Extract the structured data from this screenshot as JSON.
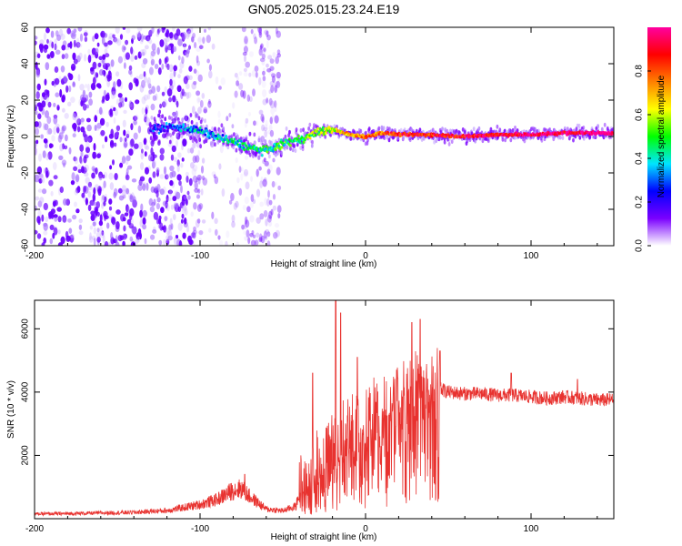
{
  "title": "GN05.2025.015.23.24.E19",
  "chart_data": [
    {
      "type": "heatmap",
      "xlabel": "Height of straight line (km)",
      "ylabel": "Frequency (Hz)",
      "xlim": [
        -200,
        150
      ],
      "ylim": [
        -60,
        60
      ],
      "xticks": [
        -200,
        -100,
        0,
        100
      ],
      "yticks": [
        -60,
        -40,
        -20,
        0,
        20,
        40,
        60
      ],
      "xtick_labels": [
        "-200",
        "-100",
        "0",
        "100"
      ],
      "ytick_labels": [
        "-60",
        "-40",
        "-20",
        "0",
        "20",
        "40",
        "60"
      ],
      "colorbar": {
        "label": "Normalized spectral amplitude",
        "range": [
          0,
          1
        ],
        "ticks": [
          0.0,
          0.2,
          0.4,
          0.6,
          0.8
        ],
        "tick_labels": [
          "0.0",
          "0.2",
          "0.4",
          "0.6",
          "0.8"
        ],
        "colormap": [
          "#ffffff",
          "#7a00ff",
          "#0000ff",
          "#00e5ff",
          "#00ff00",
          "#ffff00",
          "#ff8000",
          "#ff0000",
          "#ff00a0"
        ]
      },
      "noise_region_x": [
        -200,
        -52
      ],
      "ridge": {
        "x": [
          -130,
          -120,
          -110,
          -100,
          -90,
          -80,
          -70,
          -60,
          -50,
          -40,
          -30,
          -20,
          -10,
          0,
          10,
          20,
          40,
          60,
          80,
          100,
          120,
          150
        ],
        "y": [
          4,
          5,
          5,
          3,
          0,
          -3,
          -6,
          -8,
          -4,
          -2,
          2,
          4,
          1,
          0,
          2,
          1,
          1,
          0,
          1,
          1,
          2,
          2
        ],
        "amplitude": [
          0.2,
          0.25,
          0.3,
          0.35,
          0.35,
          0.4,
          0.4,
          0.45,
          0.45,
          0.5,
          0.55,
          0.6,
          0.7,
          0.75,
          0.8,
          0.85,
          0.85,
          0.9,
          0.9,
          0.95,
          0.95,
          1.0
        ]
      }
    },
    {
      "type": "line",
      "xlabel": "Height of straight line (km)",
      "ylabel": "SNR (10 * v/v)",
      "xlim": [
        -200,
        150
      ],
      "ylim": [
        0,
        6900
      ],
      "xticks": [
        -200,
        -100,
        0,
        100
      ],
      "yticks": [
        2000,
        4000,
        6000
      ],
      "xtick_labels": [
        "-200",
        "-100",
        "0",
        "100"
      ],
      "ytick_labels": [
        "2000",
        "4000",
        "6000"
      ],
      "color": "#e8322f",
      "series": [
        {
          "x": [
            -200,
            -180,
            -160,
            -140,
            -120,
            -110,
            -100,
            -90,
            -80,
            -75,
            -70,
            -60,
            -50,
            -42,
            -38,
            -35,
            -30,
            -25,
            -20,
            -17,
            -15,
            -10,
            -5,
            0,
            5,
            10,
            15,
            20,
            25,
            30,
            35,
            40,
            45,
            50,
            60,
            70,
            80,
            90,
            100,
            110,
            120,
            130,
            140,
            150
          ],
          "values": [
            150,
            160,
            180,
            200,
            260,
            350,
            450,
            600,
            900,
            950,
            700,
            300,
            250,
            400,
            1200,
            1000,
            1600,
            1800,
            2300,
            2200,
            2500,
            2600,
            2900,
            3000,
            3300,
            3500,
            3800,
            3900,
            4100,
            4200,
            4300,
            4200,
            4100,
            4000,
            3950,
            3950,
            3900,
            3900,
            3850,
            3800,
            3850,
            3800,
            3750,
            3750
          ],
          "spikes": [
            [
              -18,
              6900
            ],
            [
              -15,
              6500
            ],
            [
              -32,
              4600
            ],
            [
              28,
              6200
            ],
            [
              33,
              6300
            ],
            [
              45,
              5300
            ],
            [
              -73,
              1400
            ],
            [
              -5,
              5100
            ],
            [
              88,
              4600
            ],
            [
              128,
              4400
            ]
          ]
        }
      ]
    }
  ]
}
